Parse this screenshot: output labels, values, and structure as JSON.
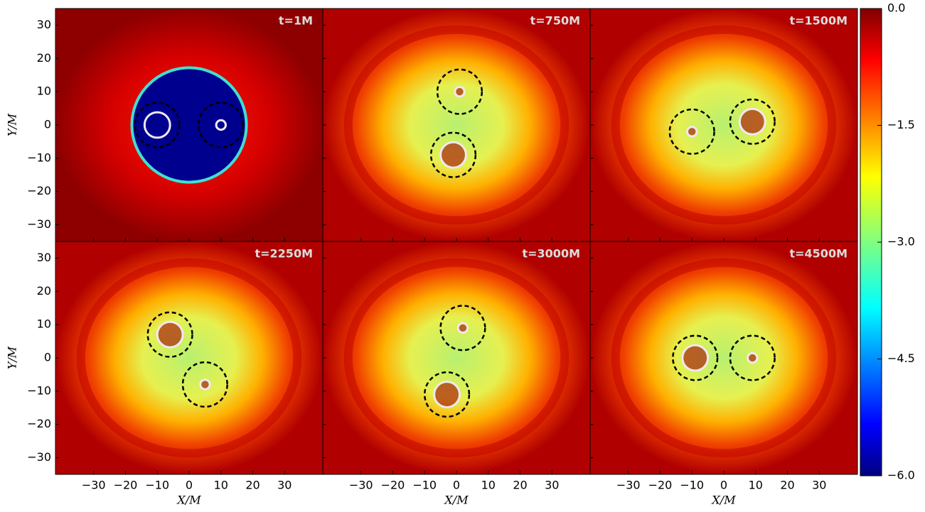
{
  "chart_data": {
    "type": "heatmap",
    "panels": [
      {
        "title": "t=1M"
      },
      {
        "title": "t=750M"
      },
      {
        "title": "t=1500M"
      },
      {
        "title": "t=2250M"
      },
      {
        "title": "t=3000M"
      },
      {
        "title": "t=4500M"
      }
    ],
    "xlabel": "X/M",
    "ylabel": "Y/M",
    "xlim": [
      -42,
      42
    ],
    "ylim": [
      -35,
      35
    ],
    "xticks": [
      {
        "value": -30,
        "label": "−30"
      },
      {
        "value": -20,
        "label": "−20"
      },
      {
        "value": -10,
        "label": "−10"
      },
      0,
      10,
      20,
      30
    ],
    "yticks": [
      {
        "value": -30,
        "label": "−30"
      },
      {
        "value": -20,
        "label": "−20"
      },
      {
        "value": -10,
        "label": "−10"
      },
      0,
      10,
      20,
      30
    ],
    "colorbar": {
      "lim": [
        -6,
        0
      ],
      "ticks": [
        {
          "value": 0,
          "label": "0.0"
        },
        {
          "value": -1.5,
          "label": "−1.5"
        },
        {
          "value": -3,
          "label": "−3.0"
        },
        {
          "value": -4.5,
          "label": "−4.5"
        },
        {
          "value": -6,
          "label": "−6.0"
        }
      ]
    }
  }
}
